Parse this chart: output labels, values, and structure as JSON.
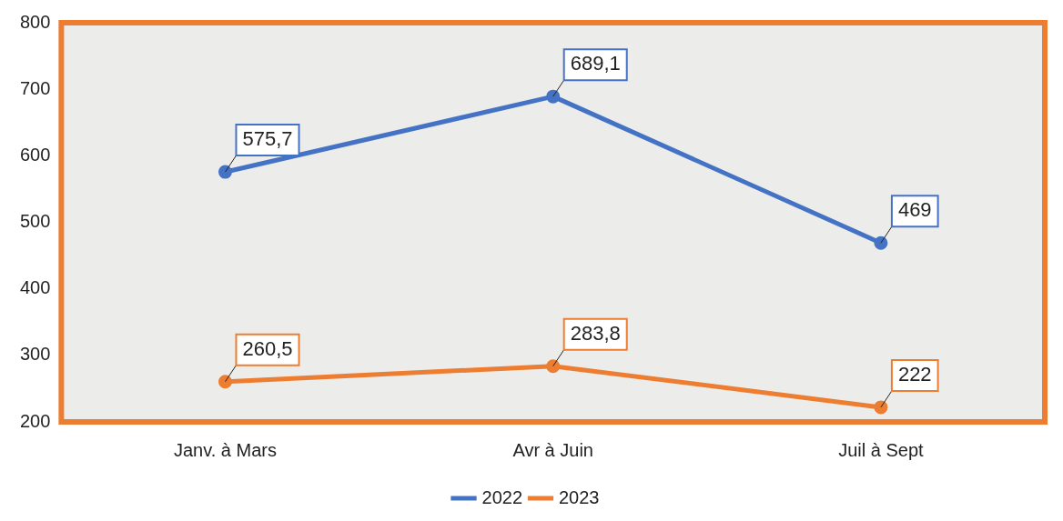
{
  "chart_data": {
    "type": "line",
    "categories": [
      "Janv. à Mars",
      "Avr à Juin",
      "Juil à Sept"
    ],
    "series": [
      {
        "name": "2022",
        "color": "#4472c4",
        "values": [
          575.7,
          689.1,
          469
        ],
        "value_labels": [
          "575,7",
          "689,1",
          "469"
        ]
      },
      {
        "name": "2023",
        "color": "#ed7d31",
        "values": [
          260.5,
          283.8,
          222
        ],
        "value_labels": [
          "260,5",
          "283,8",
          "222"
        ]
      }
    ],
    "ylim": [
      200,
      800
    ],
    "yticks": [
      200,
      300,
      400,
      500,
      600,
      700,
      800
    ],
    "grid": false,
    "legend": "bottom",
    "marker": "circle",
    "line_style": "solid"
  }
}
